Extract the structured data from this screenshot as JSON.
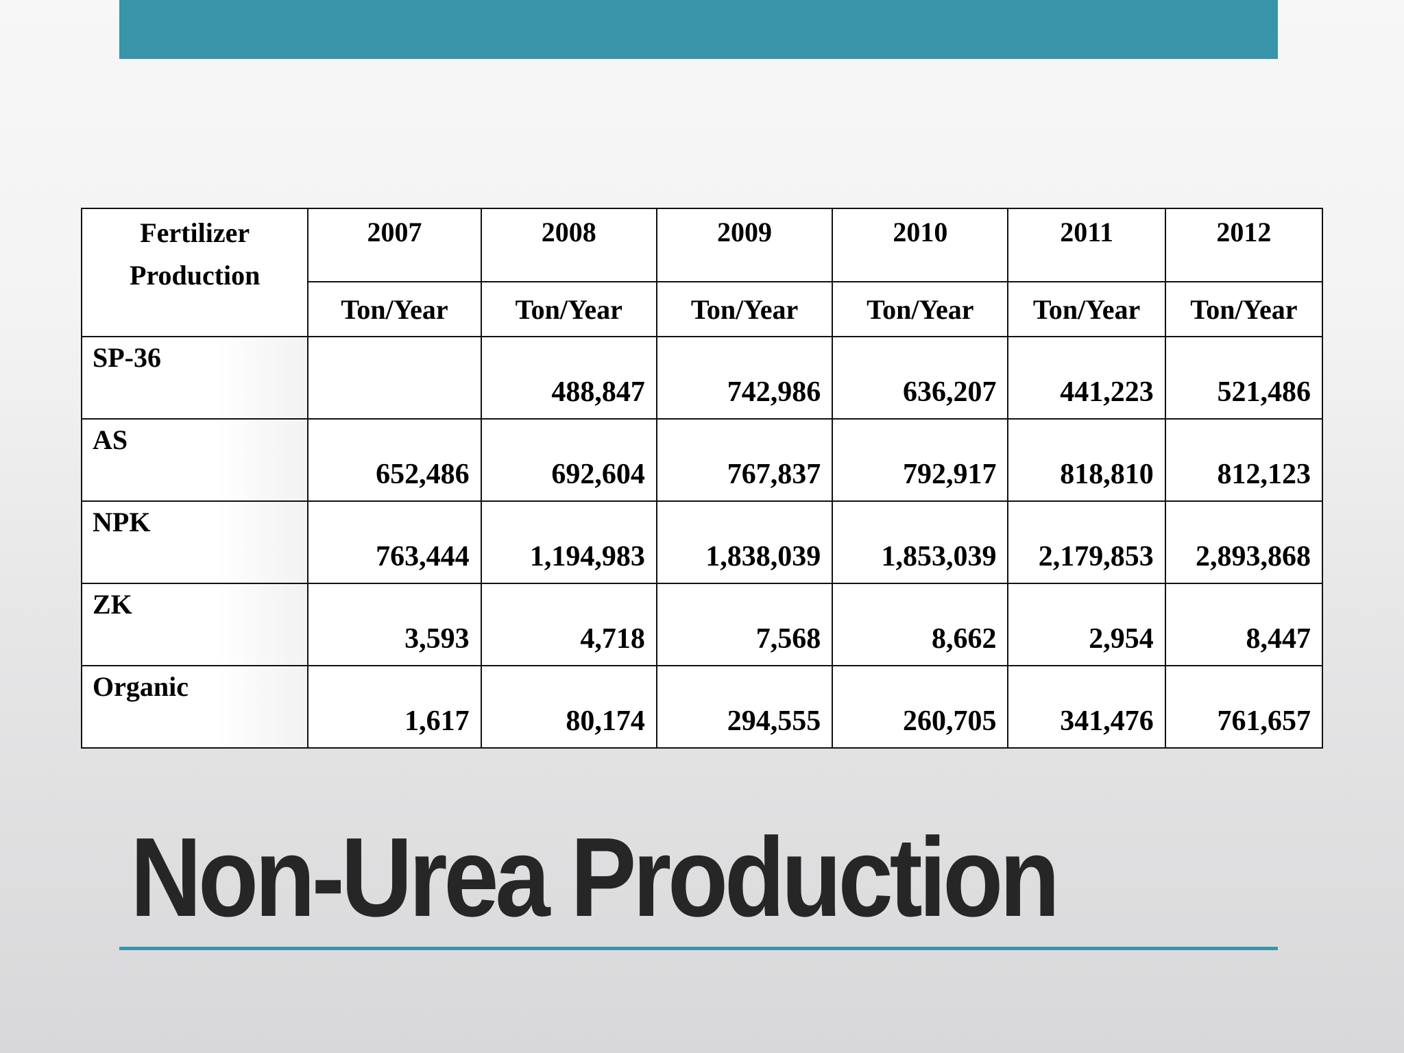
{
  "theme": {
    "accent": "#3895a9"
  },
  "slide": {
    "title": "Non-Urea Production"
  },
  "table": {
    "header_label": "Fertilizer Production",
    "years": [
      "2007",
      "2008",
      "2009",
      "2010",
      "2011",
      "2012"
    ],
    "unit": "Ton/Year",
    "rows": [
      {
        "name": "SP-36",
        "values": [
          "",
          "488,847",
          "742,986",
          "636,207",
          "441,223",
          "521,486"
        ]
      },
      {
        "name": "AS",
        "values": [
          "652,486",
          "692,604",
          "767,837",
          "792,917",
          "818,810",
          "812,123"
        ]
      },
      {
        "name": "NPK",
        "values": [
          "763,444",
          "1,194,983",
          "1,838,039",
          "1,853,039",
          "2,179,853",
          "2,893,868"
        ]
      },
      {
        "name": "ZK",
        "values": [
          "3,593",
          "4,718",
          "7,568",
          "8,662",
          "2,954",
          "8,447"
        ]
      },
      {
        "name": "Organic",
        "values": [
          "1,617",
          "80,174",
          "294,555",
          "260,705",
          "341,476",
          "761,657"
        ]
      }
    ]
  }
}
